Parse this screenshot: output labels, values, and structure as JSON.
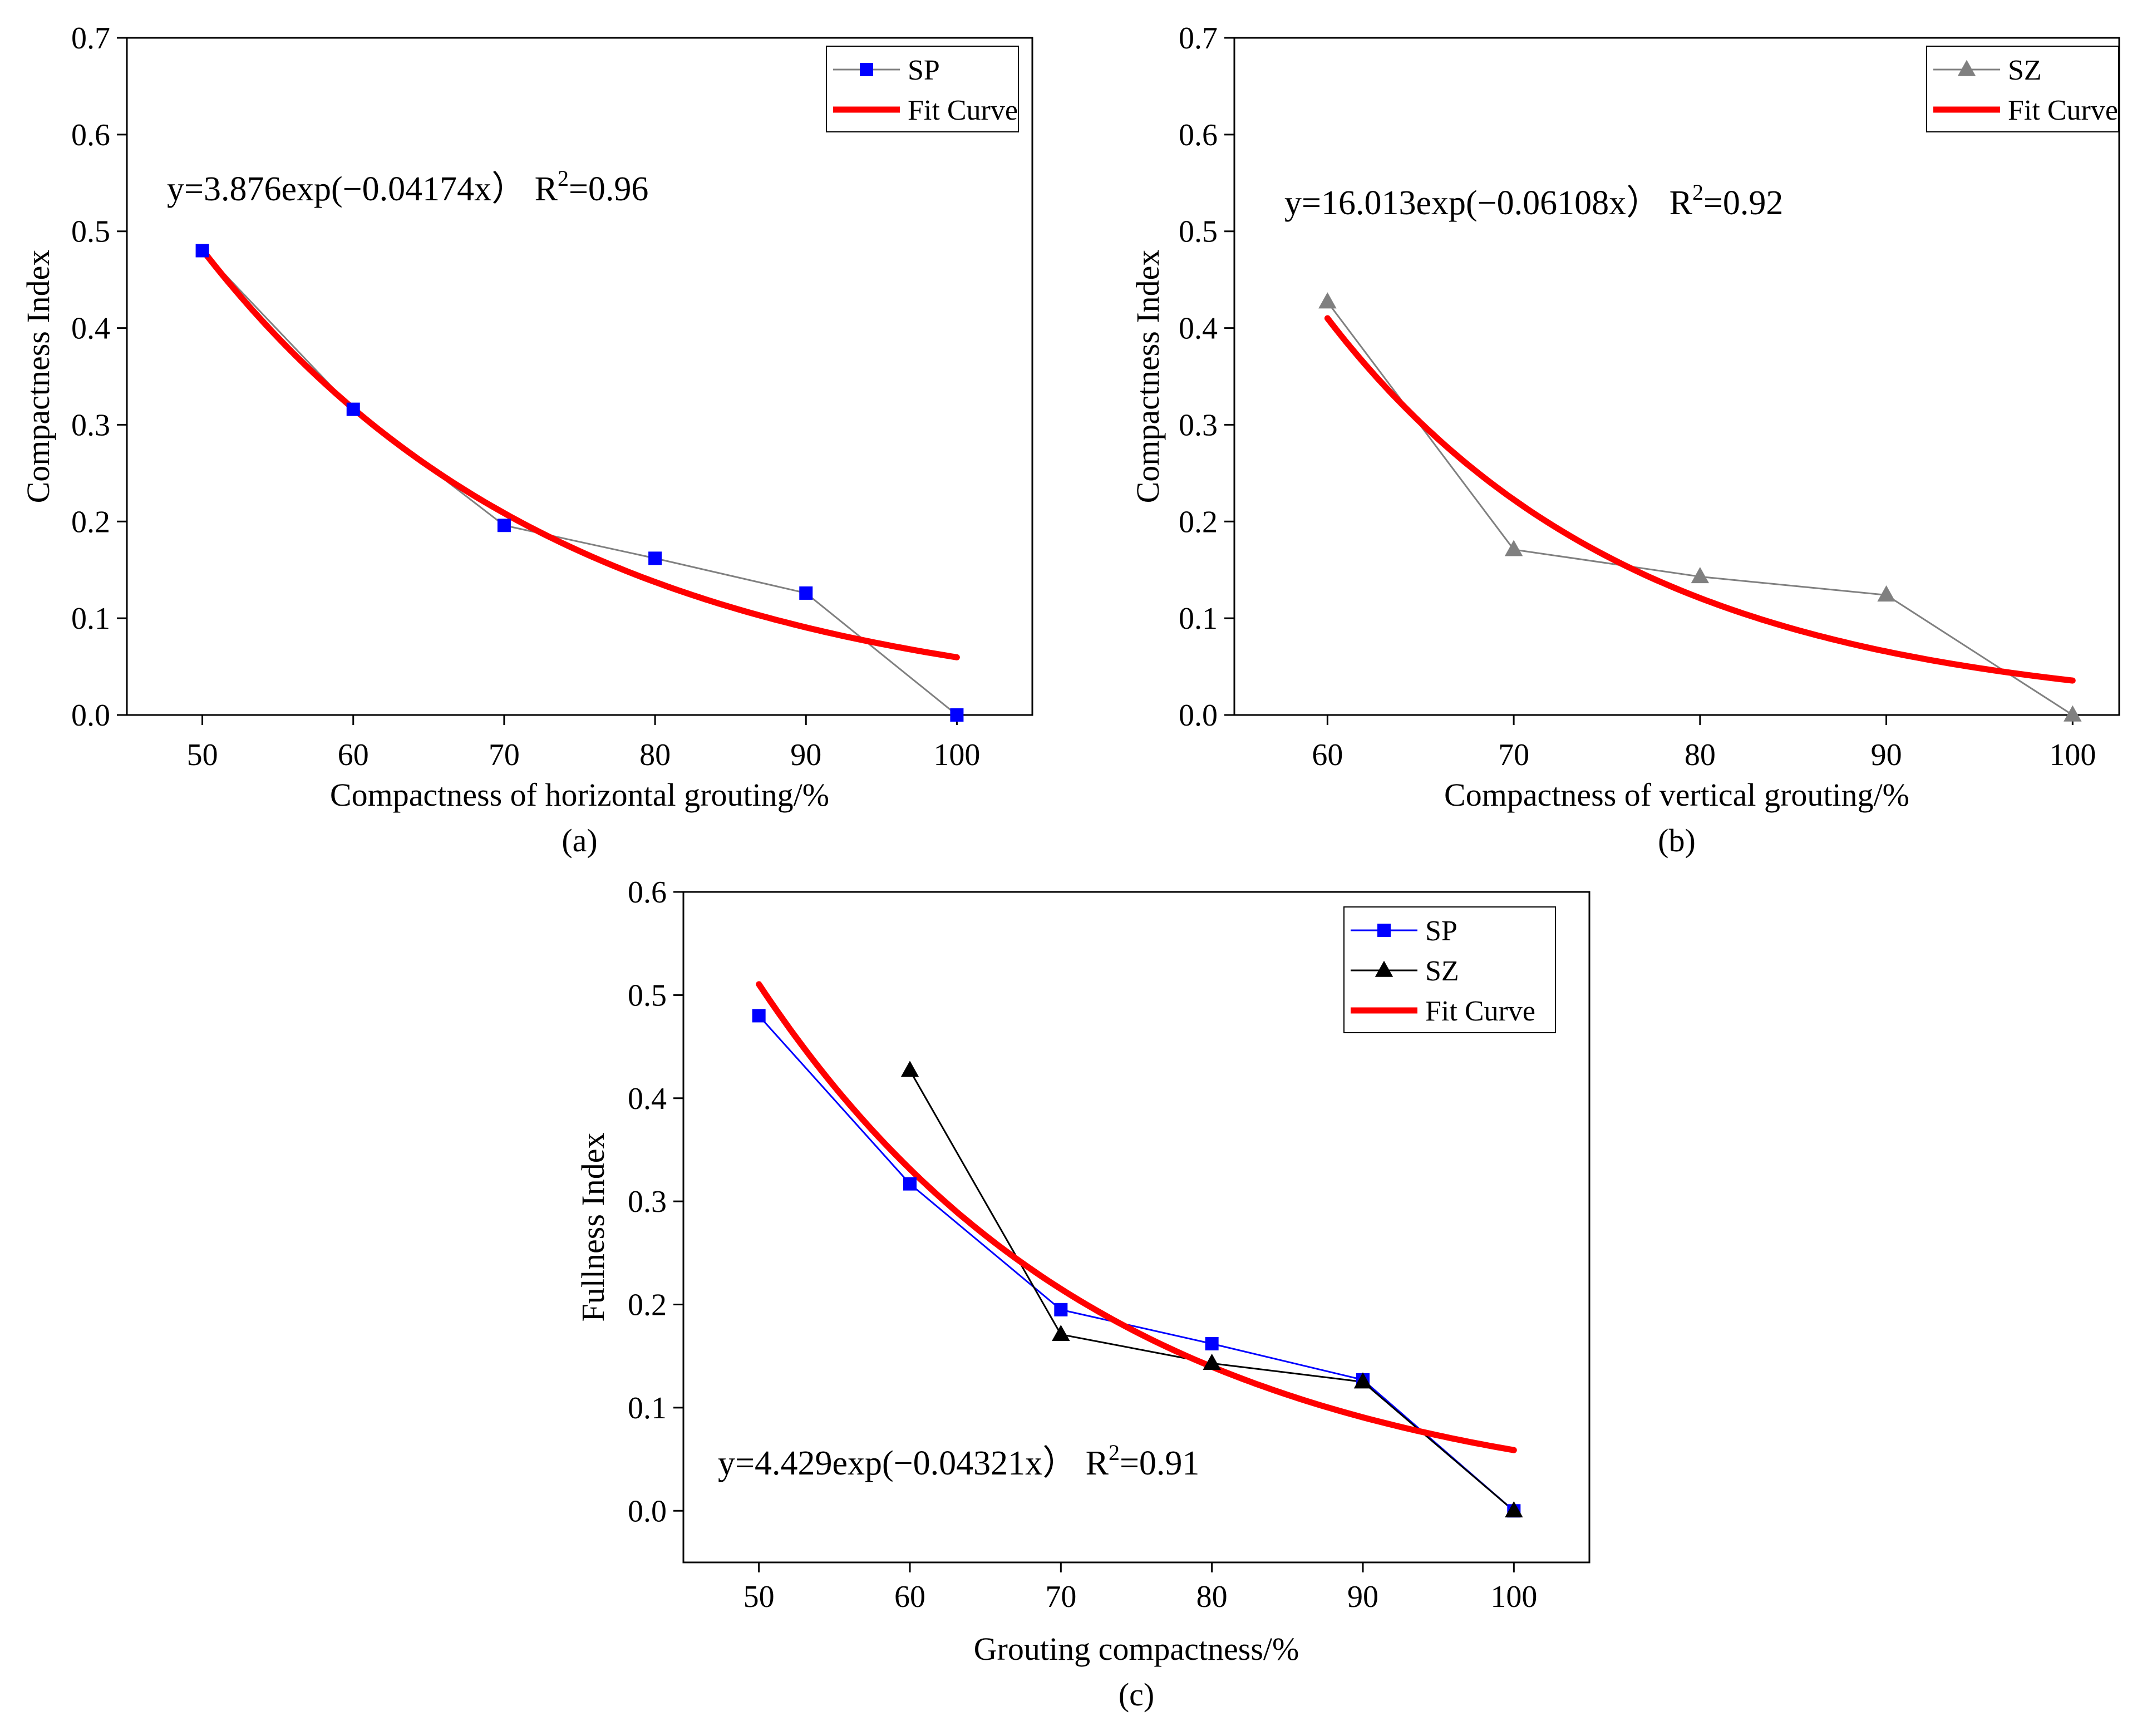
{
  "chart_data": [
    {
      "id": "a",
      "type": "line",
      "caption": "(a)",
      "xlabel": "Compactness of horizontal grouting/%",
      "ylabel": "Compactness Index",
      "xlim": [
        45,
        105
      ],
      "ylim": [
        0,
        0.7
      ],
      "x_ticks": [
        50,
        60,
        70,
        80,
        90,
        100
      ],
      "y_ticks": [
        0.0,
        0.1,
        0.2,
        0.3,
        0.4,
        0.5,
        0.6,
        0.7
      ],
      "x_tick_labels": [
        "50",
        "60",
        "70",
        "80",
        "90",
        "100"
      ],
      "y_tick_labels": [
        "0.0",
        "0.1",
        "0.2",
        "0.3",
        "0.4",
        "0.5",
        "0.6",
        "0.7"
      ],
      "series": [
        {
          "name": "SP",
          "marker": "square",
          "color": "#0000ff",
          "line_color": "#808080",
          "x": [
            50,
            60,
            70,
            80,
            90,
            100
          ],
          "y": [
            0.48,
            0.316,
            0.196,
            0.162,
            0.126,
            0.0
          ]
        }
      ],
      "fit": {
        "name": "Fit Curve",
        "color": "#ff0000",
        "a": 3.876,
        "b": -0.04174,
        "x_range": [
          50,
          100
        ]
      },
      "equation": {
        "prefix": "y=3.876exp(−0.04174x） R",
        "sup": "2",
        "suffix": "=0.96"
      },
      "legend": {
        "position": "top-right",
        "entries": [
          "SP",
          "Fit Curve"
        ]
      }
    },
    {
      "id": "b",
      "type": "line",
      "caption": "(b)",
      "xlabel": "Compactness of vertical grouting/%",
      "ylabel": "Compactness Index",
      "xlim": [
        55,
        102.5
      ],
      "ylim": [
        0,
        0.7
      ],
      "x_ticks": [
        60,
        70,
        80,
        90,
        100
      ],
      "y_ticks": [
        0.0,
        0.1,
        0.2,
        0.3,
        0.4,
        0.5,
        0.6,
        0.7
      ],
      "x_tick_labels": [
        "60",
        "70",
        "80",
        "90",
        "100"
      ],
      "y_tick_labels": [
        "0.0",
        "0.1",
        "0.2",
        "0.3",
        "0.4",
        "0.5",
        "0.6",
        "0.7"
      ],
      "series": [
        {
          "name": "SZ",
          "marker": "triangle",
          "color": "#808080",
          "line_color": "#808080",
          "x": [
            60,
            70,
            80,
            90,
            100
          ],
          "y": [
            0.427,
            0.171,
            0.143,
            0.124,
            0.0
          ]
        }
      ],
      "fit": {
        "name": "Fit Curve",
        "color": "#ff0000",
        "a": 16.013,
        "b": -0.06108,
        "x_range": [
          60,
          100
        ]
      },
      "equation": {
        "prefix": "y=16.013exp(−0.06108x） R",
        "sup": "2",
        "suffix": "=0.92"
      },
      "legend": {
        "position": "top-right",
        "entries": [
          "SZ",
          "Fit Curve"
        ]
      }
    },
    {
      "id": "c",
      "type": "line",
      "caption": "(c)",
      "xlabel": "Grouting compactness/%",
      "ylabel": "Fullness Index",
      "xlim": [
        45,
        105
      ],
      "ylim": [
        -0.05,
        0.6
      ],
      "x_ticks": [
        50,
        60,
        70,
        80,
        90,
        100
      ],
      "y_ticks": [
        0.0,
        0.1,
        0.2,
        0.3,
        0.4,
        0.5,
        0.6
      ],
      "x_tick_labels": [
        "50",
        "60",
        "70",
        "80",
        "90",
        "100"
      ],
      "y_tick_labels": [
        "0.0",
        "0.1",
        "0.2",
        "0.3",
        "0.4",
        "0.5",
        "0.6"
      ],
      "series": [
        {
          "name": "SP",
          "marker": "square",
          "color": "#0000ff",
          "line_color": "#0000ff",
          "x": [
            50,
            60,
            70,
            80,
            90,
            100
          ],
          "y": [
            0.48,
            0.317,
            0.195,
            0.162,
            0.127,
            0.0
          ]
        },
        {
          "name": "SZ",
          "marker": "triangle",
          "color": "#000000",
          "line_color": "#000000",
          "x": [
            60,
            70,
            80,
            90,
            100
          ],
          "y": [
            0.427,
            0.171,
            0.143,
            0.125,
            0.0
          ]
        }
      ],
      "fit": {
        "name": "Fit Curve",
        "color": "#ff0000",
        "a": 4.429,
        "b": -0.04321,
        "x_range": [
          50,
          100
        ]
      },
      "equation": {
        "prefix": "y=4.429exp(−0.04321x） R",
        "sup": "2",
        "suffix": "=0.91"
      },
      "legend": {
        "position": "top-right",
        "entries": [
          "SP",
          "SZ",
          "Fit Curve"
        ]
      }
    }
  ]
}
